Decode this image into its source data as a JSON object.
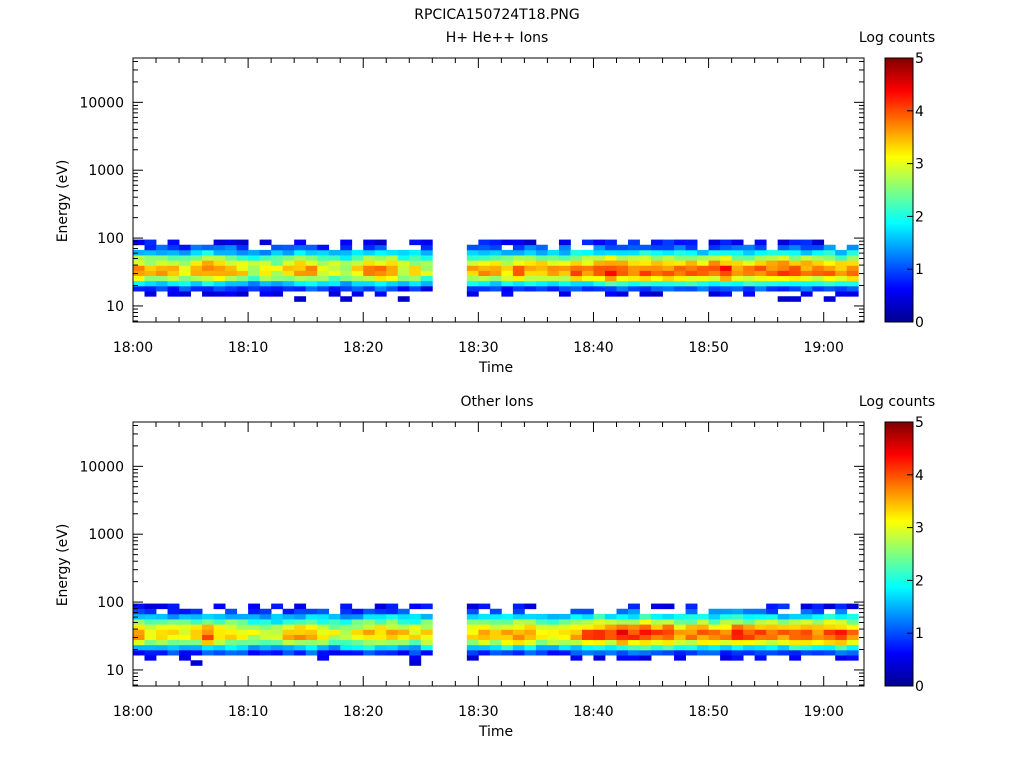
{
  "figure_title": "RPCICA150724T18.PNG",
  "chart_data": [
    {
      "type": "heatmap",
      "title": "H+ He++ Ions",
      "xlabel": "Time",
      "ylabel": "Energy (eV)",
      "colorbar_label": "Log counts",
      "colorbar_ticks": [
        "0",
        "1",
        "2",
        "3",
        "4",
        "5"
      ],
      "zlim": [
        0,
        5
      ],
      "x_ticks": [
        "18:00",
        "18:10",
        "18:20",
        "18:30",
        "18:40",
        "18:50",
        "19:00"
      ],
      "y_ticks": [
        "10",
        "100",
        "1000",
        "10000"
      ],
      "xlim_minutes_after_1800": [
        0,
        63.5
      ],
      "ylim_eV": [
        5.8,
        45000
      ],
      "yscale": "log",
      "data_gap_minutes_after_1800": [
        25.5,
        28.8
      ],
      "peak_energy_eV": 33,
      "max_energy_eV": 95,
      "time_minutes_after_1800": [
        0,
        2,
        4,
        6,
        8,
        10,
        12,
        14,
        16,
        18,
        20,
        22,
        24,
        29,
        31,
        33,
        35,
        37,
        39,
        41,
        43,
        45,
        47,
        49,
        51,
        53,
        55,
        57,
        59,
        61,
        63
      ],
      "peak_log_counts": [
        3.6,
        3.4,
        3.3,
        3.7,
        3.5,
        3.1,
        3.2,
        3.5,
        3.3,
        3.2,
        3.6,
        3.5,
        3.0,
        3.3,
        3.5,
        3.6,
        3.4,
        3.6,
        3.9,
        4.1,
        4.2,
        4.0,
        3.8,
        3.9,
        4.0,
        3.9,
        4.1,
        3.9,
        4.0,
        3.8,
        3.9
      ]
    },
    {
      "type": "heatmap",
      "title": "Other Ions",
      "xlabel": "Time",
      "ylabel": "Energy (eV)",
      "colorbar_label": "Log counts",
      "colorbar_ticks": [
        "0",
        "1",
        "2",
        "3",
        "4",
        "5"
      ],
      "zlim": [
        0,
        5
      ],
      "x_ticks": [
        "18:00",
        "18:10",
        "18:20",
        "18:30",
        "18:40",
        "18:50",
        "19:00"
      ],
      "y_ticks": [
        "10",
        "100",
        "1000",
        "10000"
      ],
      "xlim_minutes_after_1800": [
        0,
        63.5
      ],
      "ylim_eV": [
        5.8,
        45000
      ],
      "yscale": "log",
      "data_gap_minutes_after_1800": [
        25.5,
        28.8
      ],
      "peak_energy_eV": 33,
      "max_energy_eV": 95,
      "time_minutes_after_1800": [
        0,
        2,
        4,
        6,
        8,
        10,
        12,
        14,
        16,
        18,
        20,
        22,
        24,
        29,
        31,
        33,
        35,
        37,
        39,
        41,
        43,
        45,
        47,
        49,
        51,
        53,
        55,
        57,
        59,
        61,
        63
      ],
      "peak_log_counts": [
        3.7,
        3.3,
        3.2,
        3.8,
        3.6,
        3.0,
        3.1,
        3.6,
        3.2,
        3.1,
        3.7,
        3.5,
        3.1,
        3.1,
        3.4,
        3.7,
        3.4,
        3.5,
        3.8,
        4.0,
        4.2,
        4.0,
        3.8,
        3.9,
        3.9,
        3.8,
        4.0,
        3.9,
        4.0,
        3.9,
        3.7
      ]
    }
  ]
}
